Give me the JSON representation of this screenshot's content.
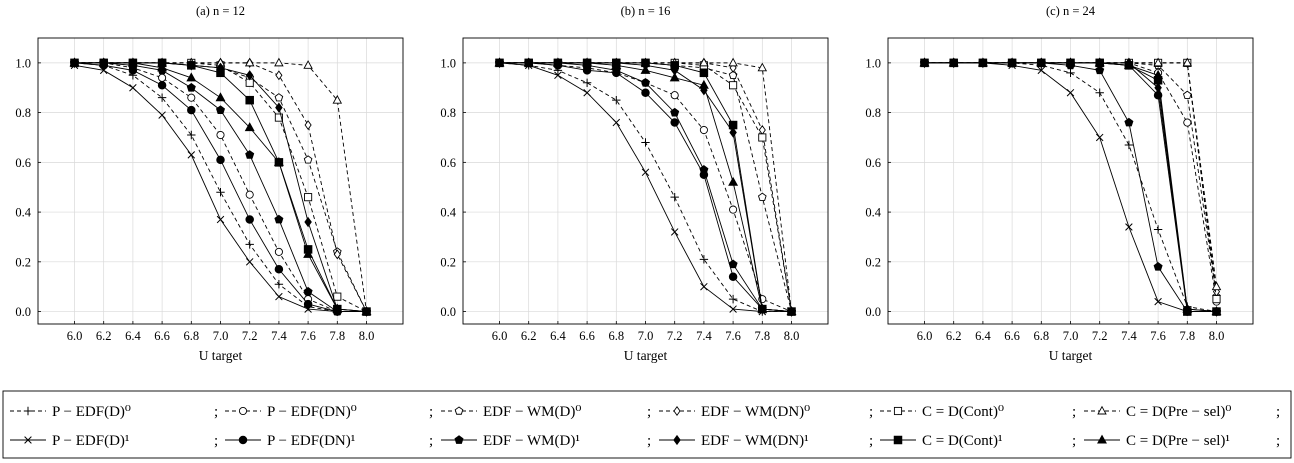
{
  "chart_data": [
    {
      "type": "line",
      "title": "(a) n = 12",
      "xlabel": "U target",
      "ylabel": "",
      "x": [
        6.0,
        6.2,
        6.4,
        6.6,
        6.8,
        7.0,
        7.2,
        7.4,
        7.6,
        7.8,
        8.0
      ],
      "xticks": [
        "6.0",
        "6.2",
        "6.4",
        "6.6",
        "6.8",
        "7.0",
        "7.2",
        "7.4",
        "7.6",
        "7.8",
        "8.0"
      ],
      "yticks": [
        "0.0",
        "0.2",
        "0.4",
        "0.6",
        "0.8",
        "1.0"
      ],
      "xlim": [
        5.75,
        8.25
      ],
      "ylim": [
        -0.05,
        1.1
      ],
      "grid": true,
      "series": [
        {
          "name": "P − EDF(D)⁰",
          "values": [
            1.0,
            0.99,
            0.95,
            0.86,
            0.71,
            0.48,
            0.27,
            0.11,
            0.02,
            0.0,
            0.0
          ]
        },
        {
          "name": "P − EDF(DN)⁰",
          "values": [
            1.0,
            1.0,
            0.98,
            0.94,
            0.86,
            0.71,
            0.47,
            0.24,
            0.05,
            0.0,
            0.0
          ]
        },
        {
          "name": "EDF − WM(D)⁰",
          "values": [
            1.0,
            1.0,
            1.0,
            1.0,
            0.99,
            0.98,
            0.94,
            0.86,
            0.61,
            0.24,
            0.0
          ]
        },
        {
          "name": "EDF − WM(DN)⁰",
          "values": [
            1.0,
            1.0,
            1.0,
            1.0,
            1.0,
            1.0,
            1.0,
            0.95,
            0.75,
            0.23,
            0.0
          ]
        },
        {
          "name": "C = D(Cont)⁰",
          "values": [
            1.0,
            1.0,
            1.0,
            1.0,
            1.0,
            0.99,
            0.92,
            0.78,
            0.46,
            0.06,
            0.0
          ]
        },
        {
          "name": "C = D(Pre − sel)⁰",
          "values": [
            1.0,
            1.0,
            1.0,
            1.0,
            1.0,
            1.0,
            1.0,
            1.0,
            0.99,
            0.85,
            0.0
          ]
        },
        {
          "name": "P − EDF(D)¹",
          "values": [
            0.99,
            0.97,
            0.9,
            0.79,
            0.63,
            0.37,
            0.2,
            0.06,
            0.01,
            0.0,
            0.0
          ]
        },
        {
          "name": "P − EDF(DN)¹",
          "values": [
            1.0,
            0.99,
            0.97,
            0.91,
            0.81,
            0.61,
            0.37,
            0.17,
            0.03,
            0.0,
            0.0
          ]
        },
        {
          "name": "EDF − WM(D)¹",
          "values": [
            1.0,
            1.0,
            0.99,
            0.97,
            0.9,
            0.81,
            0.63,
            0.37,
            0.08,
            0.0,
            0.0
          ]
        },
        {
          "name": "EDF − WM(DN)¹",
          "values": [
            1.0,
            1.0,
            1.0,
            1.0,
            0.99,
            0.98,
            0.95,
            0.82,
            0.36,
            0.01,
            0.0
          ]
        },
        {
          "name": "C = D(Cont)¹",
          "values": [
            1.0,
            1.0,
            1.0,
            1.0,
            0.99,
            0.96,
            0.85,
            0.6,
            0.25,
            0.01,
            0.0
          ]
        },
        {
          "name": "C = D(Pre − sel)¹",
          "values": [
            1.0,
            1.0,
            1.0,
            0.98,
            0.94,
            0.86,
            0.74,
            0.6,
            0.23,
            0.01,
            0.0
          ]
        }
      ]
    },
    {
      "type": "line",
      "title": "(b) n = 16",
      "xlabel": "U target",
      "ylabel": "",
      "x": [
        6.0,
        6.2,
        6.4,
        6.6,
        6.8,
        7.0,
        7.2,
        7.4,
        7.6,
        7.8,
        8.0
      ],
      "xticks": [
        "6.0",
        "6.2",
        "6.4",
        "6.6",
        "6.8",
        "7.0",
        "7.2",
        "7.4",
        "7.6",
        "7.8",
        "8.0"
      ],
      "yticks": [
        "0.0",
        "0.2",
        "0.4",
        "0.6",
        "0.8",
        "1.0"
      ],
      "xlim": [
        5.75,
        8.25
      ],
      "ylim": [
        -0.05,
        1.1
      ],
      "grid": true,
      "series": [
        {
          "name": "P − EDF(D)⁰",
          "values": [
            1.0,
            0.99,
            0.97,
            0.92,
            0.85,
            0.68,
            0.46,
            0.21,
            0.05,
            0.0,
            0.0
          ]
        },
        {
          "name": "P − EDF(DN)⁰",
          "values": [
            1.0,
            1.0,
            0.99,
            0.98,
            0.96,
            0.92,
            0.87,
            0.73,
            0.41,
            0.05,
            0.0
          ]
        },
        {
          "name": "EDF − WM(D)⁰",
          "values": [
            1.0,
            1.0,
            1.0,
            1.0,
            1.0,
            1.0,
            0.99,
            0.98,
            0.95,
            0.46,
            0.0
          ]
        },
        {
          "name": "EDF − WM(DN)⁰",
          "values": [
            1.0,
            1.0,
            1.0,
            1.0,
            1.0,
            1.0,
            1.0,
            1.0,
            0.98,
            0.73,
            0.0
          ]
        },
        {
          "name": "C = D(Cont)⁰",
          "values": [
            1.0,
            1.0,
            1.0,
            1.0,
            1.0,
            1.0,
            1.0,
            0.99,
            0.91,
            0.7,
            0.0
          ]
        },
        {
          "name": "C = D(Pre − sel)⁰",
          "values": [
            1.0,
            1.0,
            1.0,
            1.0,
            1.0,
            1.0,
            1.0,
            1.0,
            1.0,
            0.98,
            0.0
          ]
        },
        {
          "name": "P − EDF(D)¹",
          "values": [
            1.0,
            0.99,
            0.95,
            0.88,
            0.76,
            0.56,
            0.32,
            0.1,
            0.01,
            0.0,
            0.0
          ]
        },
        {
          "name": "P − EDF(DN)¹",
          "values": [
            1.0,
            1.0,
            0.99,
            0.97,
            0.96,
            0.88,
            0.76,
            0.55,
            0.14,
            0.01,
            0.0
          ]
        },
        {
          "name": "EDF − WM(D)¹",
          "values": [
            1.0,
            1.0,
            1.0,
            0.99,
            0.97,
            0.92,
            0.8,
            0.57,
            0.19,
            0.01,
            0.0
          ]
        },
        {
          "name": "EDF − WM(DN)¹",
          "values": [
            1.0,
            1.0,
            1.0,
            1.0,
            1.0,
            0.99,
            0.97,
            0.89,
            0.72,
            0.01,
            0.0
          ]
        },
        {
          "name": "C = D(Cont)¹",
          "values": [
            1.0,
            1.0,
            1.0,
            1.0,
            1.0,
            1.0,
            0.99,
            0.96,
            0.75,
            0.01,
            0.0
          ]
        },
        {
          "name": "C = D(Pre − sel)¹",
          "values": [
            1.0,
            1.0,
            1.0,
            1.0,
            0.99,
            0.97,
            0.94,
            0.91,
            0.52,
            0.01,
            0.0
          ]
        }
      ]
    },
    {
      "type": "line",
      "title": "(c) n = 24",
      "xlabel": "U target",
      "ylabel": "",
      "x": [
        6.0,
        6.2,
        6.4,
        6.6,
        6.8,
        7.0,
        7.2,
        7.4,
        7.6,
        7.8,
        8.0
      ],
      "xticks": [
        "6.0",
        "6.2",
        "6.4",
        "6.6",
        "6.8",
        "7.0",
        "7.2",
        "7.4",
        "7.6",
        "7.8",
        "8.0"
      ],
      "yticks": [
        "0.0",
        "0.2",
        "0.4",
        "0.6",
        "0.8",
        "1.0"
      ],
      "xlim": [
        5.75,
        8.25
      ],
      "ylim": [
        -0.05,
        1.1
      ],
      "grid": true,
      "series": [
        {
          "name": "P − EDF(D)⁰",
          "values": [
            1.0,
            1.0,
            1.0,
            1.0,
            0.99,
            0.96,
            0.88,
            0.67,
            0.33,
            0.02,
            0.0
          ]
        },
        {
          "name": "P − EDF(DN)⁰",
          "values": [
            1.0,
            1.0,
            1.0,
            1.0,
            1.0,
            1.0,
            1.0,
            1.0,
            0.96,
            0.76,
            0.04
          ]
        },
        {
          "name": "EDF − WM(D)⁰",
          "values": [
            1.0,
            1.0,
            1.0,
            1.0,
            1.0,
            1.0,
            1.0,
            1.0,
            0.99,
            0.87,
            0.06
          ]
        },
        {
          "name": "EDF − WM(DN)⁰",
          "values": [
            1.0,
            1.0,
            1.0,
            1.0,
            1.0,
            1.0,
            1.0,
            1.0,
            1.0,
            1.0,
            0.08
          ]
        },
        {
          "name": "C = D(Cont)⁰",
          "values": [
            1.0,
            1.0,
            1.0,
            1.0,
            1.0,
            1.0,
            1.0,
            1.0,
            1.0,
            1.0,
            0.05
          ]
        },
        {
          "name": "C = D(Pre − sel)⁰",
          "values": [
            1.0,
            1.0,
            1.0,
            1.0,
            1.0,
            1.0,
            1.0,
            1.0,
            1.0,
            1.0,
            0.1
          ]
        },
        {
          "name": "P − EDF(D)¹",
          "values": [
            1.0,
            1.0,
            1.0,
            0.99,
            0.97,
            0.88,
            0.7,
            0.34,
            0.04,
            0.0,
            0.0
          ]
        },
        {
          "name": "P − EDF(DN)¹",
          "values": [
            1.0,
            1.0,
            1.0,
            1.0,
            1.0,
            1.0,
            1.0,
            0.99,
            0.87,
            0.0,
            0.0
          ]
        },
        {
          "name": "EDF − WM(D)¹",
          "values": [
            1.0,
            1.0,
            1.0,
            1.0,
            1.0,
            0.99,
            0.97,
            0.76,
            0.18,
            0.0,
            0.0
          ]
        },
        {
          "name": "EDF − WM(DN)¹",
          "values": [
            1.0,
            1.0,
            1.0,
            1.0,
            1.0,
            1.0,
            1.0,
            1.0,
            0.9,
            0.01,
            0.0
          ]
        },
        {
          "name": "C = D(Cont)¹",
          "values": [
            1.0,
            1.0,
            1.0,
            1.0,
            1.0,
            1.0,
            1.0,
            0.99,
            0.93,
            0.0,
            0.0
          ]
        },
        {
          "name": "C = D(Pre − sel)¹",
          "values": [
            1.0,
            1.0,
            1.0,
            1.0,
            1.0,
            1.0,
            1.0,
            0.99,
            0.95,
            0.01,
            0.0
          ]
        }
      ]
    }
  ],
  "legend": {
    "placement": "bottom",
    "items": [
      {
        "label": "P − EDF(D)⁰",
        "marker": "plus",
        "dashed": true
      },
      {
        "label": "P − EDF(DN)⁰",
        "marker": "circle-open",
        "dashed": true
      },
      {
        "label": "EDF − WM(D)⁰",
        "marker": "pentagon-open",
        "dashed": true
      },
      {
        "label": "EDF − WM(DN)⁰",
        "marker": "diamond-open",
        "dashed": true
      },
      {
        "label": "C = D(Cont)⁰",
        "marker": "square-open",
        "dashed": true
      },
      {
        "label": "C = D(Pre − sel)⁰",
        "marker": "triangle-open",
        "dashed": true
      },
      {
        "label": "P − EDF(D)¹",
        "marker": "cross",
        "dashed": false
      },
      {
        "label": "P − EDF(DN)¹",
        "marker": "circle-filled",
        "dashed": false
      },
      {
        "label": "EDF − WM(D)¹",
        "marker": "pentagon-filled",
        "dashed": false
      },
      {
        "label": "EDF − WM(DN)¹",
        "marker": "diamond-filled",
        "dashed": false
      },
      {
        "label": "C = D(Cont)¹",
        "marker": "square-filled",
        "dashed": false
      },
      {
        "label": "C = D(Pre − sel)¹",
        "marker": "triangle-filled",
        "dashed": false
      }
    ]
  },
  "colors": {
    "line": "#000000",
    "grid": "#d9d9d9",
    "background": "#ffffff"
  }
}
